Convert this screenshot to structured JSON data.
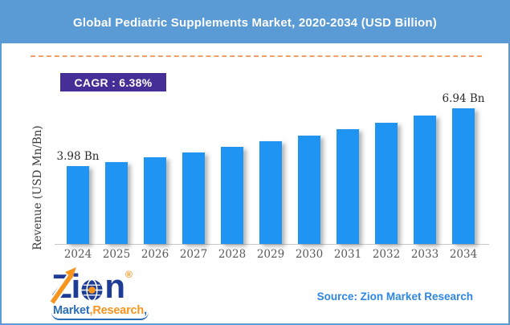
{
  "page": {
    "border_color": "#5B9BD5",
    "background": "#FFFFFF"
  },
  "header": {
    "title": "Global Pediatric Supplements Market, 2020-2034 (USD Billion)",
    "bg_color": "#5B9BD5",
    "text_color": "#FFFFFF"
  },
  "divider": {
    "color": "#F0A068",
    "style": "dashed"
  },
  "cagr_badge": {
    "label": "CAGR : 6.38%",
    "bg_color": "#452F96",
    "text_color": "#FFFFFF"
  },
  "chart_data": {
    "type": "bar",
    "title": "Global Pediatric Supplements Market, 2020-2034 (USD Billion)",
    "categories": [
      "2024",
      "2025",
      "2026",
      "2027",
      "2028",
      "2029",
      "2030",
      "2031",
      "2032",
      "2033",
      "2034"
    ],
    "values": [
      3.98,
      4.21,
      4.45,
      4.7,
      4.97,
      5.26,
      5.56,
      5.88,
      6.21,
      6.57,
      6.94
    ],
    "unit": "USD Bn",
    "xlabel": "",
    "ylabel": "Revenue (USD Mn/Bn)",
    "ylim": [
      0,
      7.45
    ],
    "grid": false,
    "legend": false,
    "bar_color": "#2094F3",
    "annotations": [
      {
        "index": 0,
        "text": "3.98 Bn"
      },
      {
        "index": 10,
        "text": "6.94 Bn"
      }
    ],
    "cagr": "6.38%"
  },
  "footer": {
    "logo": {
      "z": "Z",
      "i": "i",
      "n": "n",
      "registered": "®",
      "word1": "Market",
      "comma": ",",
      "word2": "Research",
      "navy": "#1E3C96",
      "orange": "#F7941D",
      "blue": "#2A6DB8"
    },
    "source": "Source: Zion Market Research",
    "source_color": "#2E86E0"
  }
}
